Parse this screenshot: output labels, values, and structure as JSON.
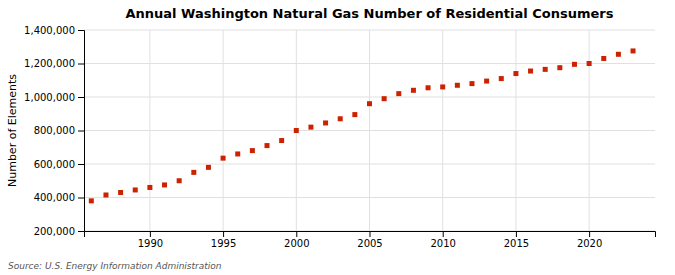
{
  "chart_data": {
    "type": "scatter",
    "title": "Annual Washington Natural Gas Number of Residential Consumers",
    "ylabel": "Number of Elements",
    "annotations": [
      "Source: U.S. Energy Information Administration"
    ],
    "x": [
      1986,
      1987,
      1988,
      1989,
      1990,
      1991,
      1992,
      1993,
      1994,
      1995,
      1996,
      1997,
      1998,
      1999,
      2000,
      2001,
      2002,
      2003,
      2004,
      2005,
      2006,
      2007,
      2008,
      2009,
      2010,
      2011,
      2012,
      2013,
      2014,
      2015,
      2016,
      2017,
      2018,
      2019,
      2020,
      2021,
      2022,
      2023
    ],
    "values": [
      380000,
      415000,
      430000,
      445000,
      460000,
      475000,
      500000,
      550000,
      580000,
      635000,
      660000,
      680000,
      710000,
      740000,
      800000,
      820000,
      845000,
      870000,
      895000,
      960000,
      990000,
      1020000,
      1040000,
      1055000,
      1060000,
      1070000,
      1080000,
      1095000,
      1110000,
      1140000,
      1155000,
      1165000,
      1175000,
      1195000,
      1200000,
      1230000,
      1255000,
      1275000
    ],
    "color": "#cc2200",
    "marker": "square",
    "xlim": [
      1985.5,
      2024.5
    ],
    "xticks": [
      1990,
      1995,
      2000,
      2005,
      2010,
      2015,
      2020
    ],
    "ylim": [
      200000,
      1400000
    ],
    "yticks": [
      {
        "value": 200000,
        "label": "200,000"
      },
      {
        "value": 400000,
        "label": "400,000"
      },
      {
        "value": 600000,
        "label": "600,000"
      },
      {
        "value": 800000,
        "label": "800,000"
      },
      {
        "value": 1000000,
        "label": "1,000,000"
      },
      {
        "value": 1200000,
        "label": "1,200,000"
      },
      {
        "value": 1400000,
        "label": "1,400,000"
      }
    ],
    "grid": true
  }
}
